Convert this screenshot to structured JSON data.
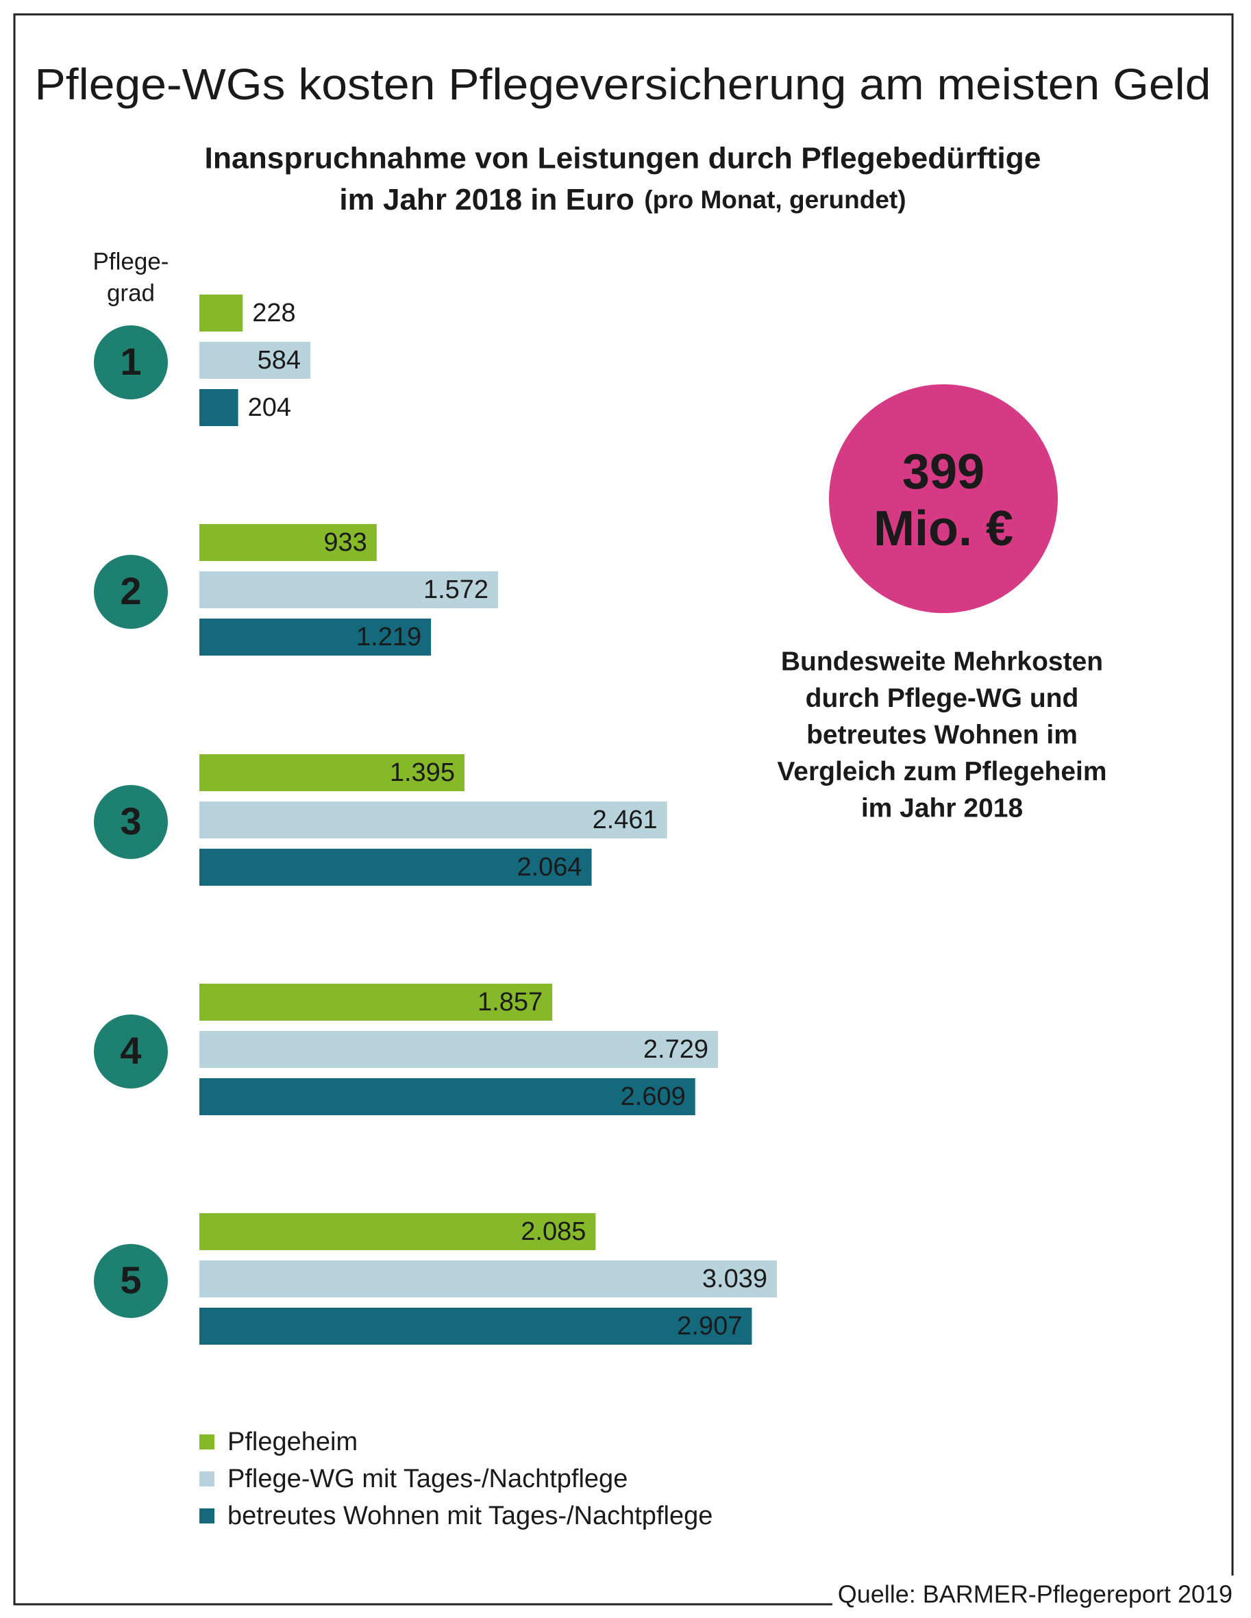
{
  "chart_data": {
    "type": "bar",
    "orientation": "horizontal",
    "title": "Pflege-WGs kosten Pflegeversicherung am meisten Geld",
    "subtitle": [
      "Inanspruchnahme von Leistungen durch Pflegebedürftige",
      "im Jahr 2018 in Euro",
      "(pro Monat, gerundet)"
    ],
    "category_label": [
      "Pflege-",
      "grad"
    ],
    "categories": [
      "1",
      "2",
      "3",
      "4",
      "5"
    ],
    "series": [
      {
        "name": "Pflegeheim",
        "color": "#86b92a",
        "values": [
          228,
          933,
          1395,
          1857,
          2085
        ],
        "value_labels": [
          "228",
          "933",
          "1.395",
          "1.857",
          "2.085"
        ]
      },
      {
        "name": "Pflege-WG mit Tages-/Nachtpflege",
        "color": "#b9d3dc",
        "values": [
          584,
          1572,
          2461,
          2729,
          3039
        ],
        "value_labels": [
          "584",
          "1.572",
          "2.461",
          "2.729",
          "3.039"
        ]
      },
      {
        "name": "betreutes Wohnen mit Tages-/Nachtpflege",
        "color": "#146a7c",
        "values": [
          204,
          1219,
          2064,
          2609,
          2907
        ],
        "value_labels": [
          "204",
          "1.219",
          "2.064",
          "2.609",
          "2.907"
        ]
      }
    ],
    "highlight": {
      "value": "399",
      "unit": "Mio. €",
      "color": "#d63a84",
      "text": [
        "Bundesweite Mehrkosten",
        "durch Pflege-WG und",
        "betreutes Wohnen im",
        "Vergleich zum Pflegeheim",
        "im Jahr 2018"
      ]
    },
    "category_color": "#1d8070",
    "source": "Quelle: BARMER-Pflegereport 2019"
  }
}
